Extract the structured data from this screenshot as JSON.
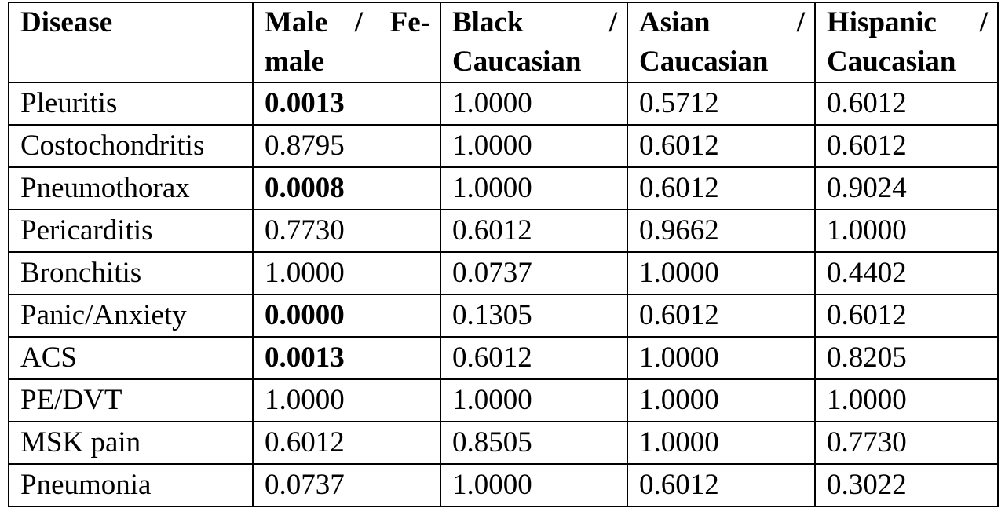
{
  "table": {
    "header": [
      "Disease",
      "Male / Fe-male",
      "Black / Caucasian",
      "Asian / Caucasian",
      "Hispanic / Caucasian"
    ],
    "rows": [
      [
        "Pleuritis",
        "0.0013",
        "1.0000",
        "0.5712",
        "0.6012"
      ],
      [
        "Costochondritis",
        "0.8795",
        "1.0000",
        "0.6012",
        "0.6012"
      ],
      [
        "Pneumothorax",
        "0.0008",
        "1.0000",
        "0.6012",
        "0.9024"
      ],
      [
        "Pericarditis",
        "0.7730",
        "0.6012",
        "0.9662",
        "1.0000"
      ],
      [
        "Bronchitis",
        "1.0000",
        "0.0737",
        "1.0000",
        "0.4402"
      ],
      [
        "Panic/Anxiety",
        "0.0000",
        "0.1305",
        "0.6012",
        "0.6012"
      ],
      [
        "ACS",
        "0.0013",
        "0.6012",
        "1.0000",
        "0.8205"
      ],
      [
        "PE/DVT",
        "1.0000",
        "1.0000",
        "1.0000",
        "1.0000"
      ],
      [
        "MSK pain",
        "0.6012",
        "0.8505",
        "1.0000",
        "0.7730"
      ],
      [
        "Pneumonia",
        "0.0737",
        "1.0000",
        "0.6012",
        "0.3022"
      ]
    ]
  }
}
